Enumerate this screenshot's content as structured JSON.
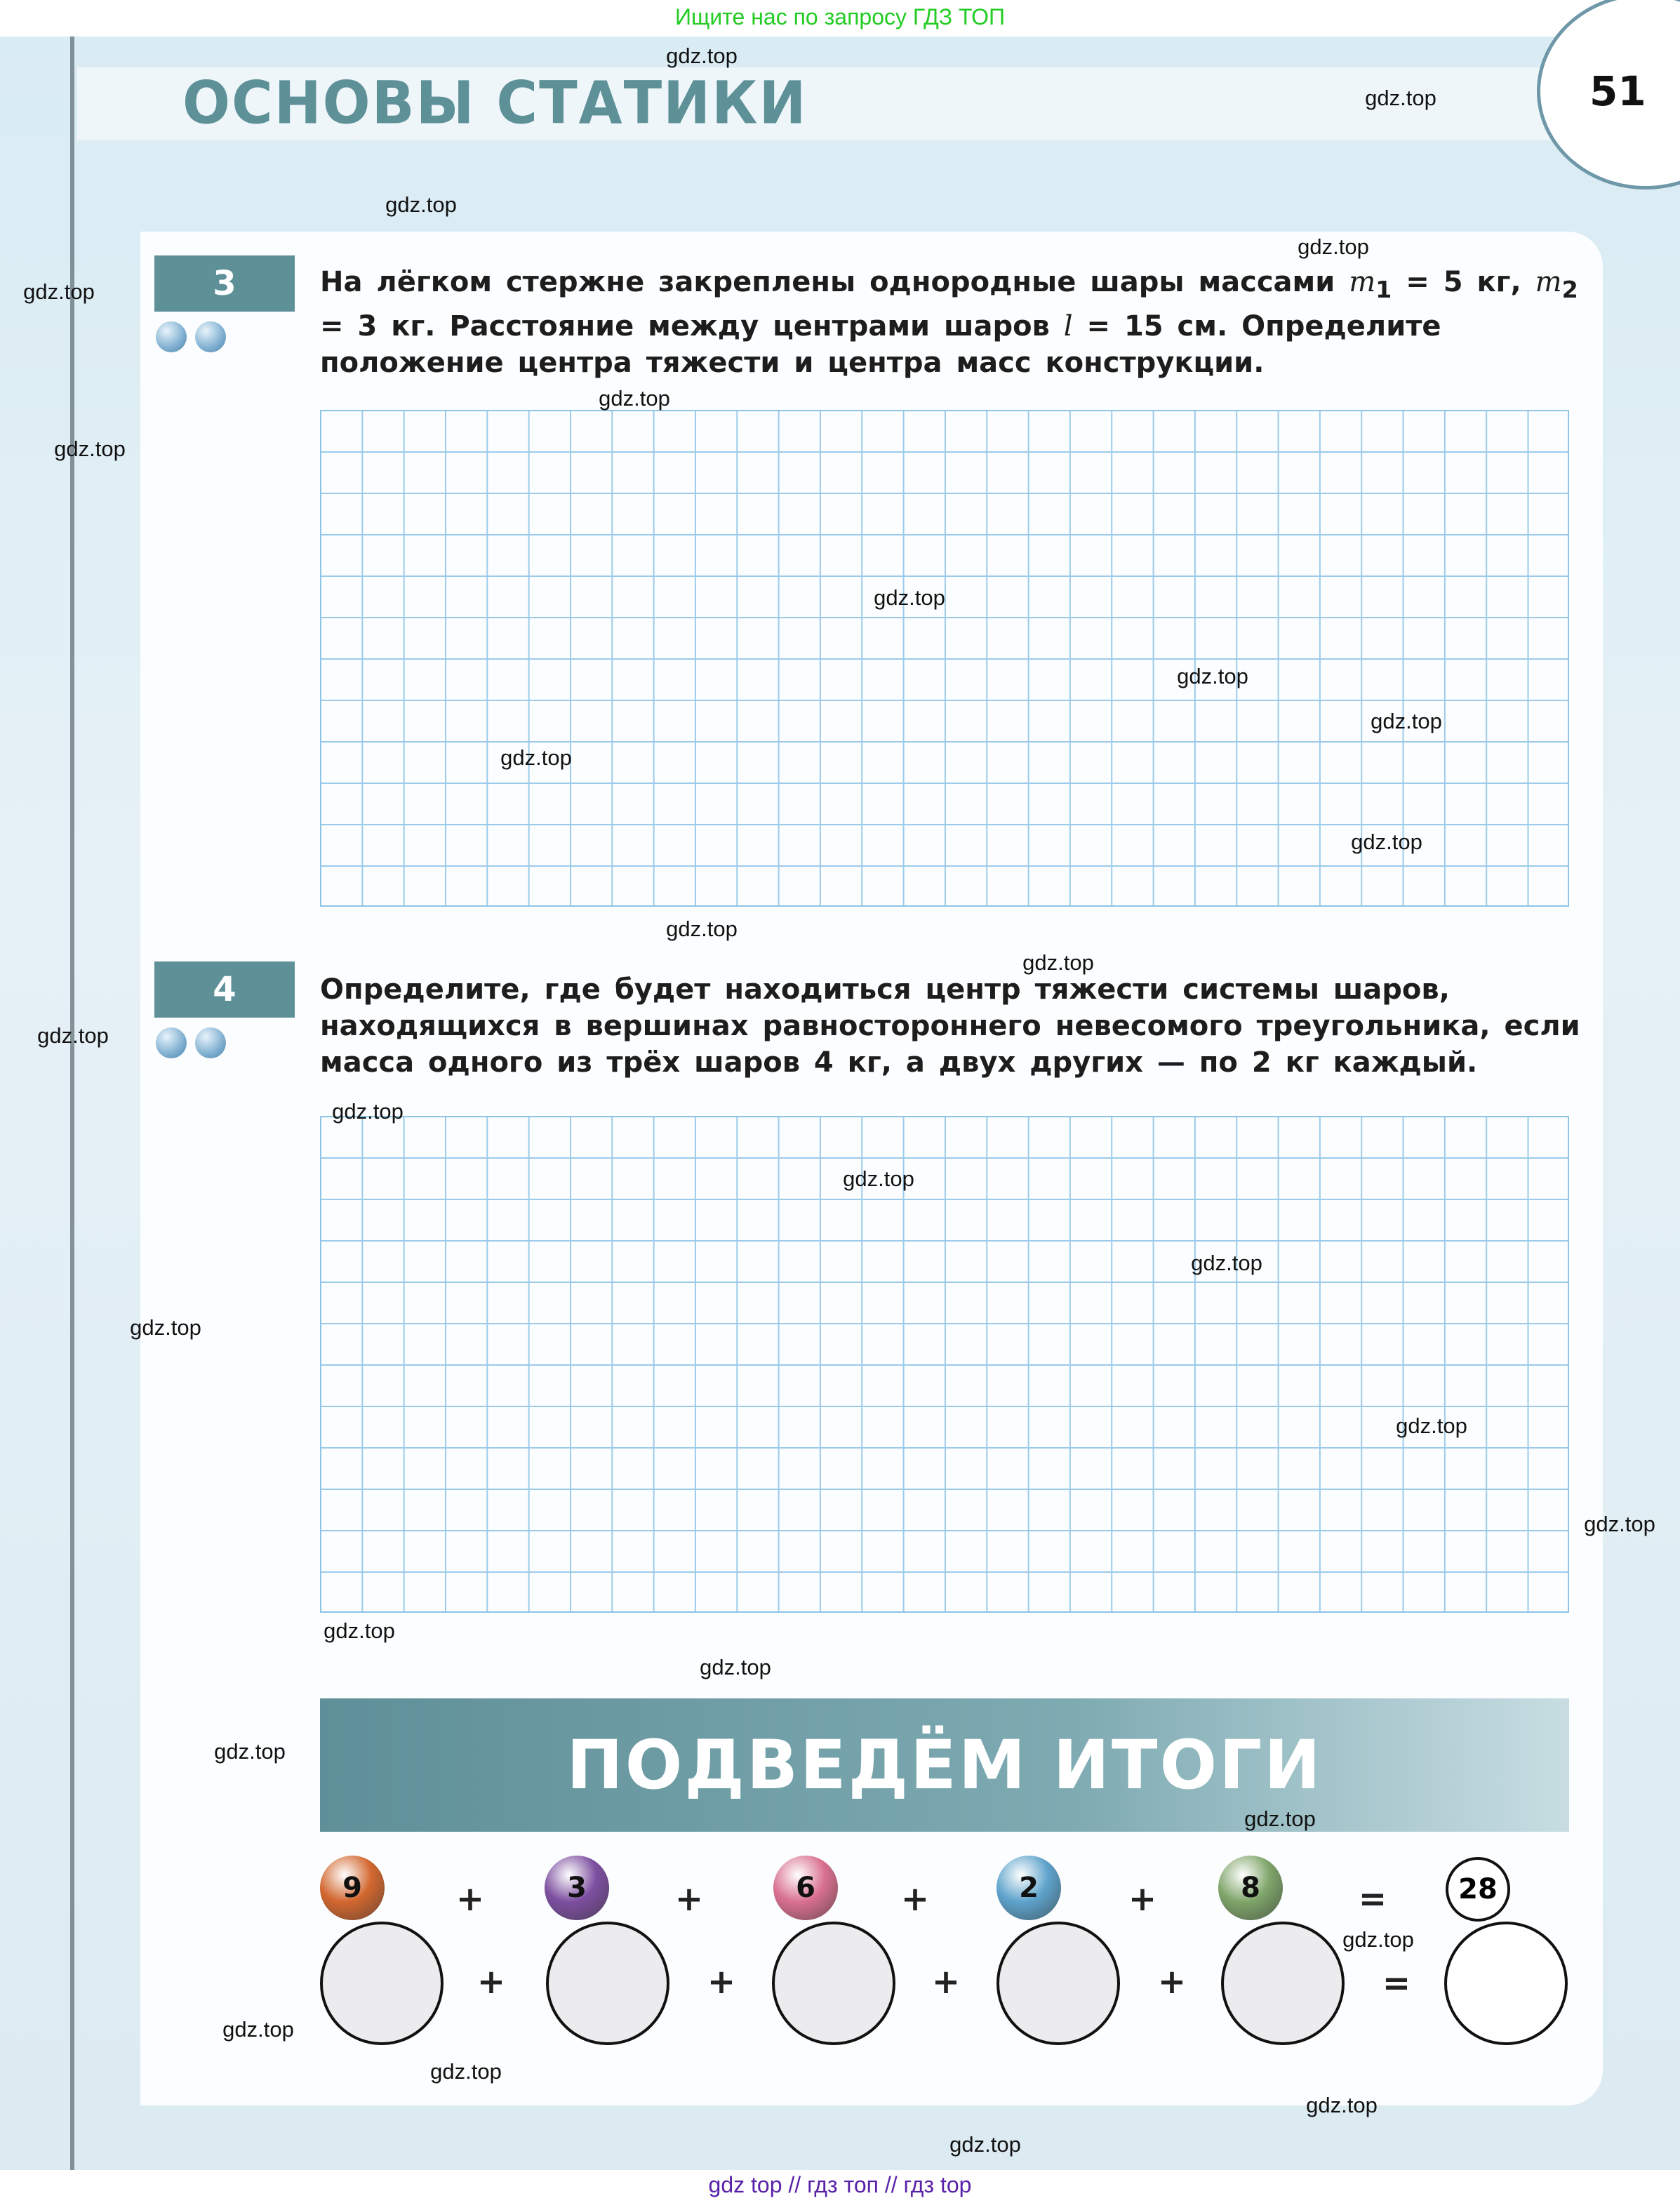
{
  "top_banner": {
    "text": "Ищите нас по запросу ГДЗ ТОП"
  },
  "header": {
    "title": "ОСНОВЫ СТАТИКИ",
    "page_number": "51"
  },
  "tasks": [
    {
      "number": "3",
      "difficulty_dots": 2,
      "text_parts": [
        "На лёгком стержне закреплены однородные шары массами ",
        "m",
        "1",
        " = 5 кг, ",
        "m",
        "2",
        " = 3 кг. Расстояние между центрами шаров ",
        "l",
        " = 15 см. Определите положение центра тяжести и центра масс конструкции."
      ]
    },
    {
      "number": "4",
      "difficulty_dots": 2,
      "text": "Определите, где будет находиться центр тяжести системы шаров, находящихся в вершинах равностороннего невесомого треугольника, если масса одного из трёх шаров 4 кг, а двух других — по 2 кг каждый."
    }
  ],
  "summary": {
    "title": "ПОДВЕДЁМ ИТОГИ",
    "balls": [
      {
        "value": "9",
        "color": "#d2672f"
      },
      {
        "value": "3",
        "color": "#7d4fa0"
      },
      {
        "value": "6",
        "color": "#d9708f"
      },
      {
        "value": "2",
        "color": "#5ea3cc"
      },
      {
        "value": "8",
        "color": "#7fa56a"
      }
    ],
    "plus": "+",
    "equals": "=",
    "total": "28"
  },
  "watermarks": [
    "gdz.top",
    "gdz.top",
    "gdz.top",
    "gdz.top",
    "gdz.top",
    "gdz.top",
    "gdz.top",
    "gdz.top",
    "gdz.top",
    "gdz.top",
    "gdz.top",
    "gdz.top",
    "gdz.top",
    "gdz.top",
    "gdz.top",
    "gdz.top",
    "gdz.top",
    "gdz.top",
    "gdz.top",
    "gdz.top",
    "gdz.top",
    "gdz.top",
    "gdz.top",
    "gdz.top",
    "gdz.top",
    "gdz.top",
    "gdz.top",
    "gdz.top",
    "gdz.top",
    "gdz.top"
  ],
  "footer": {
    "text": "gdz top  //  гдз топ  //  гдз top"
  }
}
